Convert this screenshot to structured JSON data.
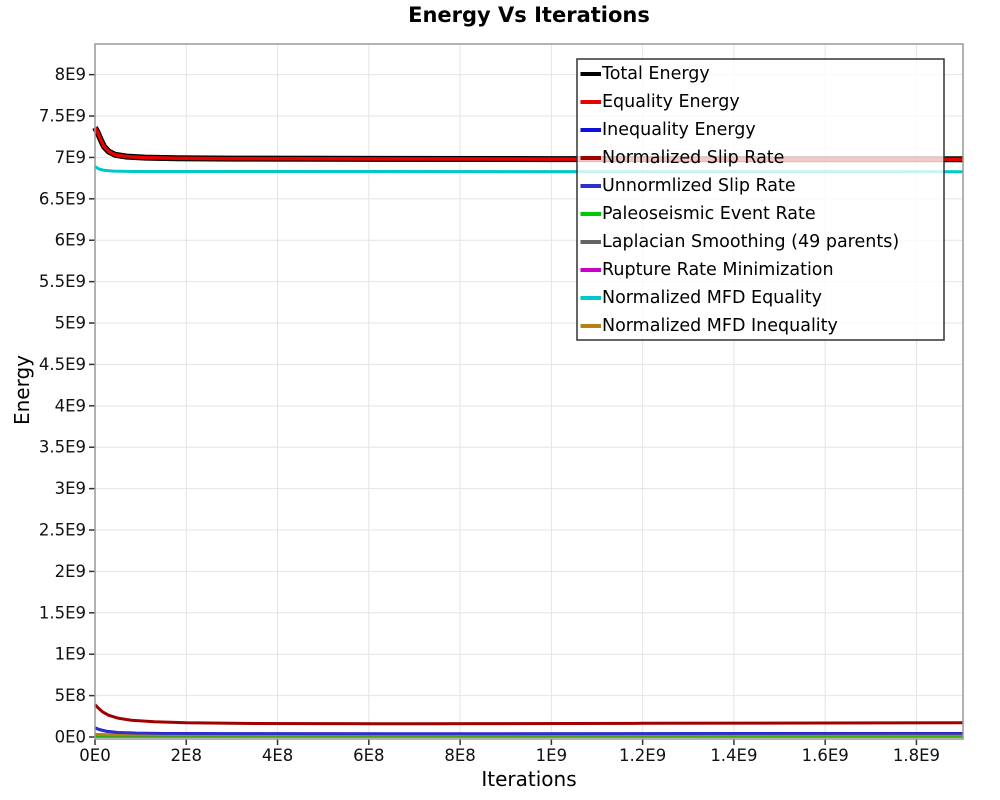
{
  "title": "Energy Vs Iterations",
  "chart_data": {
    "type": "line",
    "title": "Energy Vs Iterations",
    "xlabel": "Iterations",
    "ylabel": "Energy",
    "xlim": [
      0,
      1902000000
    ],
    "ylim": [
      0,
      8370000000
    ],
    "grid": true,
    "x_ticks": [
      {
        "v": 0,
        "label": "0E0"
      },
      {
        "v": 200000000,
        "label": "2E8"
      },
      {
        "v": 400000000,
        "label": "4E8"
      },
      {
        "v": 600000000,
        "label": "6E8"
      },
      {
        "v": 800000000,
        "label": "8E8"
      },
      {
        "v": 1000000000,
        "label": "1E9"
      },
      {
        "v": 1200000000,
        "label": "1.2E9"
      },
      {
        "v": 1400000000,
        "label": "1.4E9"
      },
      {
        "v": 1600000000,
        "label": "1.6E9"
      },
      {
        "v": 1800000000,
        "label": "1.8E9"
      }
    ],
    "y_ticks": [
      {
        "v": 0,
        "label": "0E0"
      },
      {
        "v": 500000000,
        "label": "5E8"
      },
      {
        "v": 1000000000,
        "label": "1E9"
      },
      {
        "v": 1500000000,
        "label": "1.5E9"
      },
      {
        "v": 2000000000,
        "label": "2E9"
      },
      {
        "v": 2500000000,
        "label": "2.5E9"
      },
      {
        "v": 3000000000,
        "label": "3E9"
      },
      {
        "v": 3500000000,
        "label": "3.5E9"
      },
      {
        "v": 4000000000,
        "label": "4E9"
      },
      {
        "v": 4500000000,
        "label": "4.5E9"
      },
      {
        "v": 5000000000,
        "label": "5E9"
      },
      {
        "v": 5500000000,
        "label": "5.5E9"
      },
      {
        "v": 6000000000,
        "label": "6E9"
      },
      {
        "v": 6500000000,
        "label": "6.5E9"
      },
      {
        "v": 7000000000,
        "label": "7E9"
      },
      {
        "v": 7500000000,
        "label": "7.5E9"
      },
      {
        "v": 8000000000,
        "label": "8E9"
      }
    ],
    "legend": {
      "position": "top-right",
      "background": "rgba(255,255,255,0.78)",
      "border_color": "#333333"
    },
    "draw_order": [
      7,
      6,
      5,
      9,
      2,
      4,
      3,
      8,
      0,
      1
    ],
    "series": [
      {
        "name": "Total Energy",
        "color": "#000000",
        "width": 6,
        "points": [
          [
            0,
            7360000000
          ],
          [
            6000000,
            7300000000
          ],
          [
            12000000,
            7220000000
          ],
          [
            20000000,
            7130000000
          ],
          [
            30000000,
            7070000000
          ],
          [
            45000000,
            7030000000
          ],
          [
            70000000,
            7010000000
          ],
          [
            110000000,
            6998000000
          ],
          [
            180000000,
            6990000000
          ],
          [
            300000000,
            6986000000
          ],
          [
            500000000,
            6983000000
          ],
          [
            1000000000,
            6980000000
          ],
          [
            1902000000,
            6978000000
          ]
        ]
      },
      {
        "name": "Equality Energy",
        "color": "#e60000",
        "width": 3.5,
        "points": [
          [
            0,
            7360000000
          ],
          [
            6000000,
            7300000000
          ],
          [
            12000000,
            7220000000
          ],
          [
            20000000,
            7130000000
          ],
          [
            30000000,
            7070000000
          ],
          [
            45000000,
            7030000000
          ],
          [
            70000000,
            7010000000
          ],
          [
            110000000,
            6998000000
          ],
          [
            180000000,
            6990000000
          ],
          [
            300000000,
            6986000000
          ],
          [
            500000000,
            6983000000
          ],
          [
            1000000000,
            6980000000
          ],
          [
            1902000000,
            6978000000
          ]
        ]
      },
      {
        "name": "Inequality Energy",
        "color": "#1010dd",
        "width": 2.5,
        "points": [
          [
            0,
            115000000
          ],
          [
            10000000,
            92000000
          ],
          [
            25000000,
            72000000
          ],
          [
            50000000,
            58000000
          ],
          [
            90000000,
            50000000
          ],
          [
            150000000,
            46000000
          ],
          [
            300000000,
            43000000
          ],
          [
            700000000,
            42000000
          ],
          [
            1902000000,
            46000000
          ]
        ]
      },
      {
        "name": "Normalized Slip Rate",
        "color": "#a00000",
        "width": 3,
        "points": [
          [
            0,
            390000000
          ],
          [
            8000000,
            345000000
          ],
          [
            16000000,
            305000000
          ],
          [
            30000000,
            262000000
          ],
          [
            50000000,
            228000000
          ],
          [
            80000000,
            202000000
          ],
          [
            130000000,
            185000000
          ],
          [
            200000000,
            172000000
          ],
          [
            350000000,
            163000000
          ],
          [
            700000000,
            160000000
          ],
          [
            1200000000,
            165000000
          ],
          [
            1902000000,
            172000000
          ]
        ]
      },
      {
        "name": "Unnormlized Slip Rate",
        "color": "#3030c8",
        "width": 2.5,
        "points": [
          [
            0,
            105000000
          ],
          [
            10000000,
            84000000
          ],
          [
            25000000,
            65000000
          ],
          [
            50000000,
            52000000
          ],
          [
            90000000,
            45000000
          ],
          [
            150000000,
            41000000
          ],
          [
            300000000,
            39000000
          ],
          [
            700000000,
            38000000
          ],
          [
            1902000000,
            42000000
          ]
        ]
      },
      {
        "name": "Paleoseismic Event Rate",
        "color": "#00c800",
        "width": 2,
        "points": [
          [
            0,
            14000000
          ],
          [
            1902000000,
            12000000
          ]
        ]
      },
      {
        "name": "Laplacian Smoothing (49 parents)",
        "color": "#646464",
        "width": 2,
        "points": [
          [
            0,
            6000000
          ],
          [
            1902000000,
            6000000
          ]
        ]
      },
      {
        "name": "Rupture Rate Minimization",
        "color": "#c800c8",
        "width": 2,
        "points": [
          [
            0,
            2000000
          ],
          [
            1902000000,
            2000000
          ]
        ]
      },
      {
        "name": "Normalized MFD Equality",
        "color": "#00c8c8",
        "width": 3,
        "points": [
          [
            0,
            6890000000
          ],
          [
            8000000,
            6862000000
          ],
          [
            20000000,
            6845000000
          ],
          [
            40000000,
            6835000000
          ],
          [
            80000000,
            6830000000
          ],
          [
            1902000000,
            6828000000
          ]
        ]
      },
      {
        "name": "Normalized MFD Inequality",
        "color": "#b48214",
        "width": 3,
        "points": [
          [
            0,
            30000000
          ],
          [
            40000000,
            26000000
          ],
          [
            1902000000,
            25000000
          ]
        ]
      }
    ]
  }
}
